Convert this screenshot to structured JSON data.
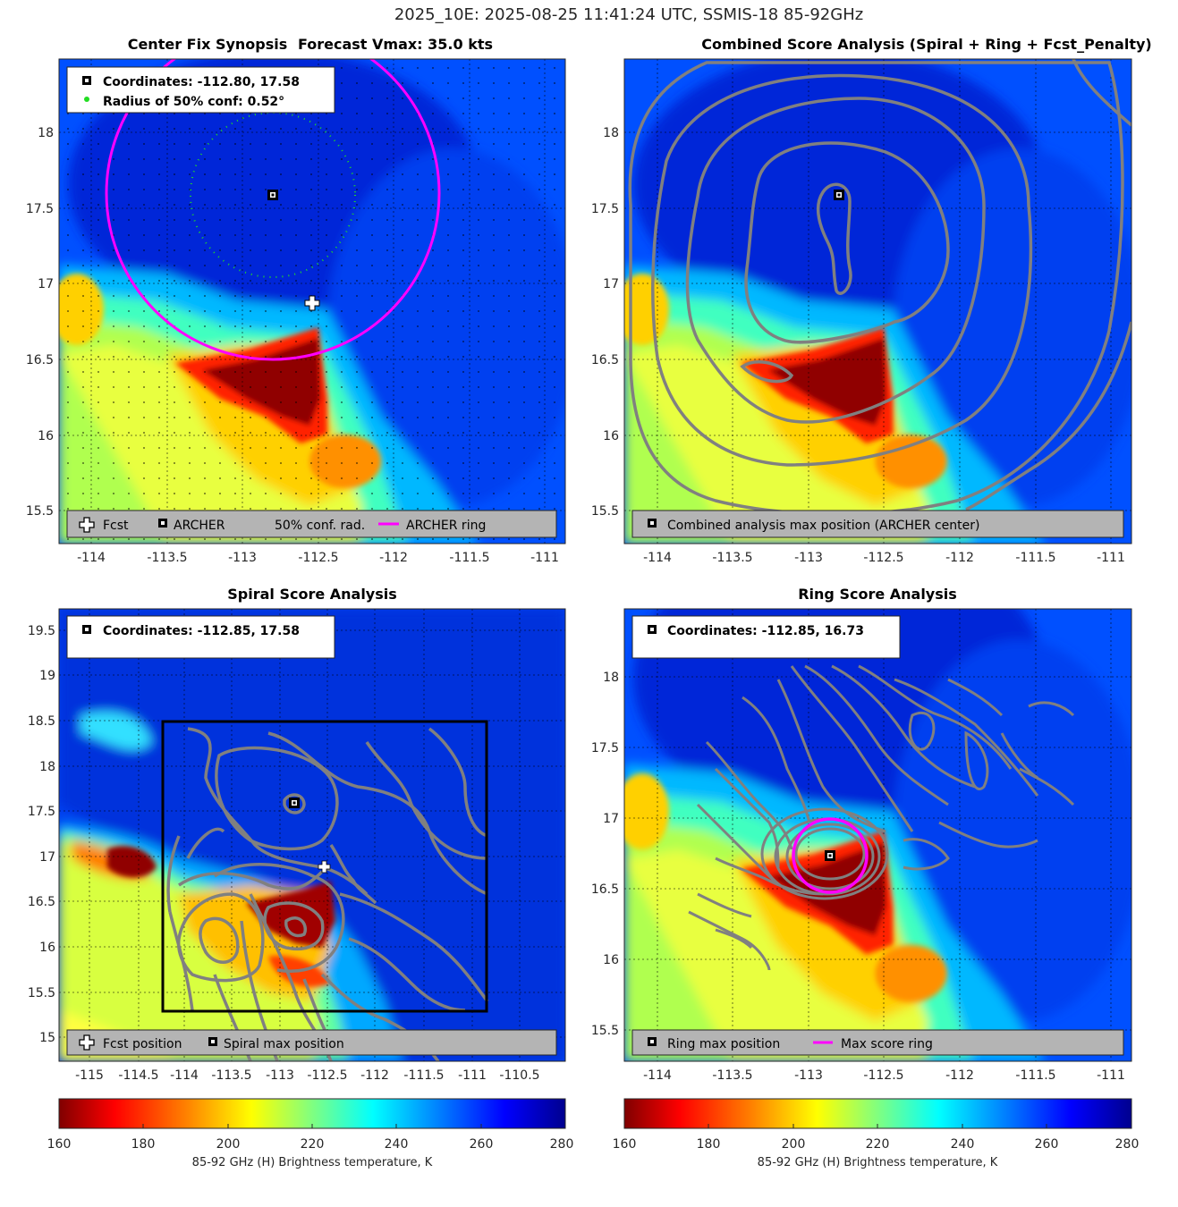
{
  "figure": {
    "title": "2025_10E: 2025-08-25 11:41:24 UTC, SSMIS-18 85-92GHz",
    "center_fix_title": "Center Fix Synopsis",
    "vmax_label": "Forecast Vmax: 35.0 kts",
    "combined_title": "Combined Score Analysis (Spiral + Ring + Fcst_Penalty)",
    "spiral_title": "Spiral Score Analysis",
    "ring_title": "Ring Score Analysis"
  },
  "colors": {
    "ring": "#ff00ff",
    "contour": "#808080",
    "conf_dots": "#22dd22",
    "legend_bg": "#b4b4b4",
    "colormap": [
      "#800000",
      "#ff0000",
      "#ff8000",
      "#ffff00",
      "#80ff80",
      "#00ffff",
      "#0080ff",
      "#0000ff",
      "#00008f"
    ]
  },
  "panels": {
    "center_fix": {
      "coords_text": "Coordinates: -112.80, 17.58",
      "conf_text": "Radius of 50% conf: 0.52°",
      "legend": {
        "fcst": "Fcst",
        "archer": "ARCHER",
        "conf": "50% conf. rad.",
        "ring": "ARCHER ring"
      },
      "x_ticks": [
        "-114",
        "-113.5",
        "-113",
        "-112.5",
        "-112",
        "-111.5",
        "-111"
      ],
      "y_ticks": [
        "18",
        "17.5",
        "17",
        "16.5",
        "16",
        "15.5"
      ]
    },
    "combined": {
      "legend": {
        "max": "Combined analysis max position (ARCHER center)"
      },
      "x_ticks": [
        "-114",
        "-113.5",
        "-113",
        "-112.5",
        "-112",
        "-111.5",
        "-111"
      ],
      "y_ticks": [
        "18",
        "17.5",
        "17",
        "16.5",
        "16",
        "15.5"
      ]
    },
    "spiral": {
      "coords_text": "Coordinates: -112.85, 17.58",
      "legend": {
        "fcst": "Fcst position",
        "max": "Spiral max position"
      },
      "x_ticks": [
        "-115",
        "-114.5",
        "-114",
        "-113.5",
        "-113",
        "-112.5",
        "-112",
        "-111.5",
        "-111",
        "-110.5"
      ],
      "y_ticks": [
        "19.5",
        "19",
        "18.5",
        "18",
        "17.5",
        "17",
        "16.5",
        "16",
        "15.5",
        "15"
      ]
    },
    "ring": {
      "coords_text": "Coordinates: -112.85, 16.73",
      "legend": {
        "max": "Ring max position",
        "ring": "Max score ring"
      },
      "x_ticks": [
        "-114",
        "-113.5",
        "-113",
        "-112.5",
        "-112",
        "-111.5",
        "-111"
      ],
      "y_ticks": [
        "18",
        "17.5",
        "17",
        "16.5",
        "16",
        "15.5"
      ]
    }
  },
  "colorbar": {
    "ticks": [
      "160",
      "180",
      "200",
      "220",
      "240",
      "260",
      "280"
    ],
    "label": "85-92 GHz (H) Brightness temperature, K"
  },
  "chart_data": [
    {
      "type": "heatmap",
      "title": "Center Fix Synopsis",
      "xlim": [
        -114.2,
        -110.9
      ],
      "ylim": [
        15.3,
        18.48
      ],
      "archer_center": [
        -112.8,
        17.58
      ],
      "forecast_position": [
        -112.5,
        16.87
      ],
      "conf_radius_deg": 0.52,
      "archer_ring_radius_deg": 1.1,
      "legend_placement": "bottom",
      "grid": true
    },
    {
      "type": "heatmap",
      "title": "Combined Score Analysis (Spiral + Ring + Fcst_Penalty)",
      "xlim": [
        -114.2,
        -110.9
      ],
      "ylim": [
        15.3,
        18.48
      ],
      "max_position": [
        -112.8,
        17.58
      ],
      "grid": true
    },
    {
      "type": "heatmap",
      "title": "Spiral Score Analysis",
      "xlim": [
        -115.3,
        -110.2
      ],
      "ylim": [
        14.7,
        19.75
      ],
      "max_position": [
        -112.85,
        17.58
      ],
      "forecast_position": [
        -112.5,
        16.87
      ],
      "search_box": [
        -114.15,
        -110.9,
        15.3,
        18.5
      ],
      "grid": true
    },
    {
      "type": "heatmap",
      "title": "Ring Score Analysis",
      "xlim": [
        -114.2,
        -110.9
      ],
      "ylim": [
        15.3,
        18.48
      ],
      "max_position": [
        -112.85,
        16.73
      ],
      "max_score_ring_radius_deg": 0.26,
      "grid": true
    },
    {
      "type": "colorbar",
      "range": [
        160,
        280
      ],
      "ticks": [
        160,
        180,
        200,
        220,
        240,
        260,
        280
      ],
      "label": "85-92 GHz (H) Brightness temperature, K"
    }
  ]
}
